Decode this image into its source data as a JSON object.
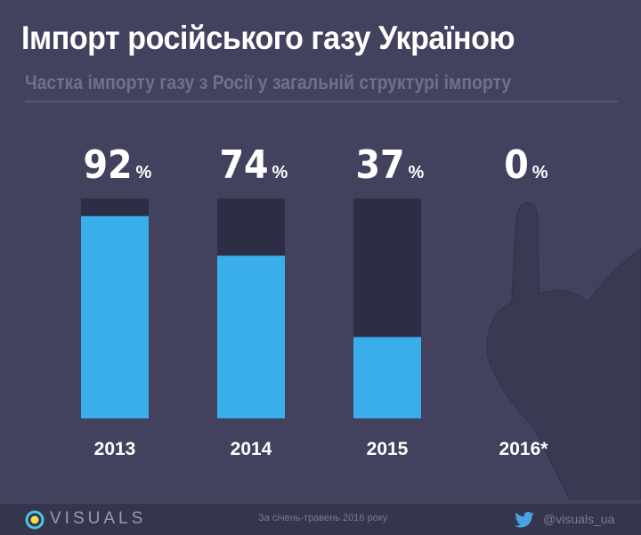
{
  "title": "Імпорт російського газу Україною",
  "subtitle": "Частка імпорту газу з Росії у загальній структурі імпорту",
  "chart_data": {
    "type": "bar",
    "categories": [
      "2013",
      "2014",
      "2015",
      "2016*"
    ],
    "values": [
      92,
      74,
      37,
      0
    ],
    "value_labels": [
      "92",
      "74",
      "37",
      "0"
    ],
    "unit": "%",
    "ylim": [
      0,
      100
    ],
    "colors": {
      "fill": "#3aaeea",
      "track": "#2d2d45"
    }
  },
  "footer": {
    "brand": "VISUALS",
    "note": "За січень-травень 2016 року",
    "twitter": "@visuals_ua"
  }
}
